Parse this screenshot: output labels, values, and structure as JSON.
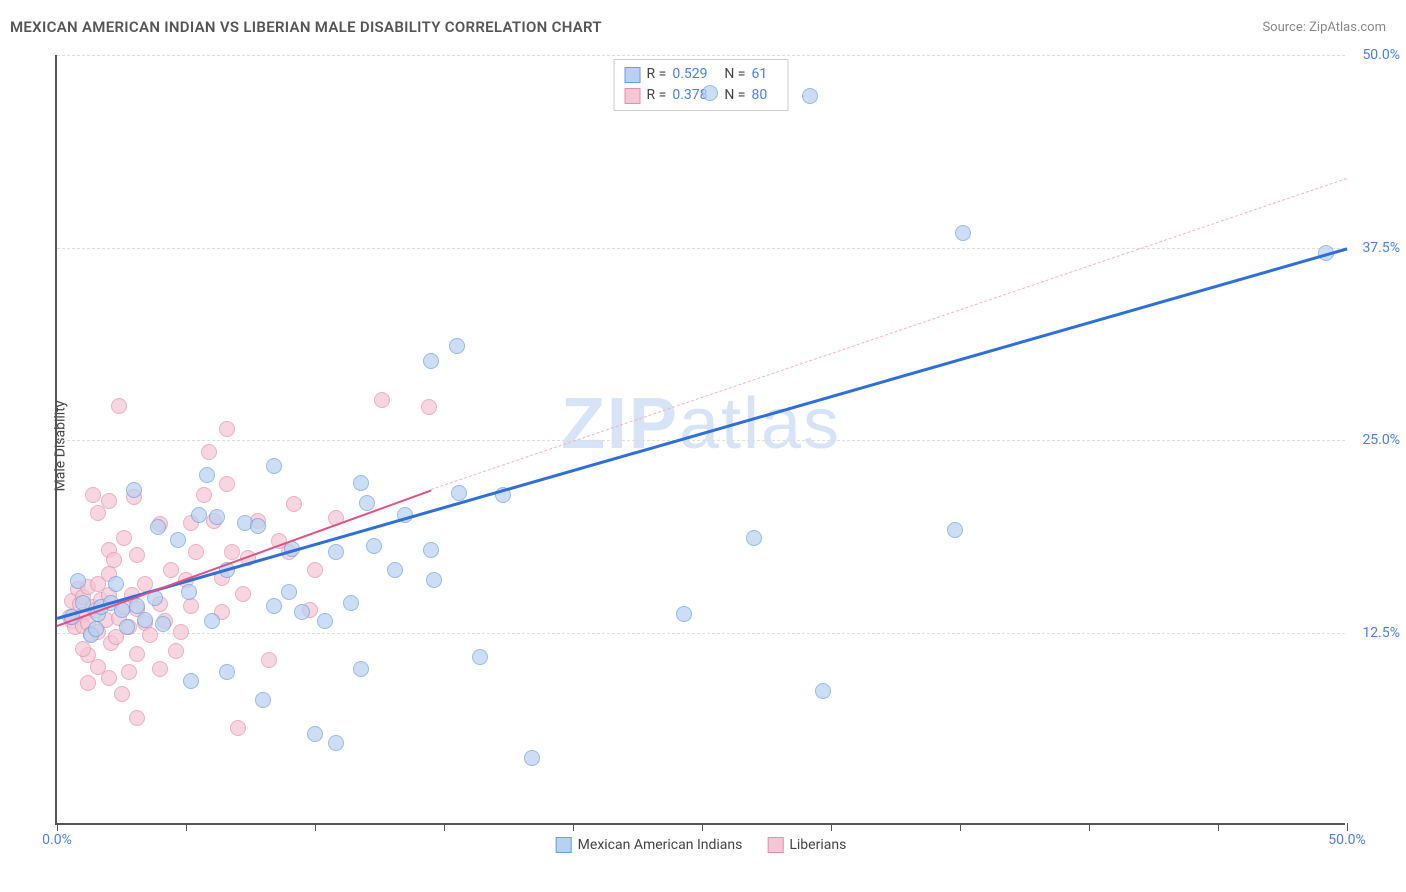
{
  "title": "MEXICAN AMERICAN INDIAN VS LIBERIAN MALE DISABILITY CORRELATION CHART",
  "source_label": "Source:",
  "source_name": "ZipAtlas.com",
  "yaxis_label": "Male Disability",
  "watermark": "ZIPatlas",
  "chart": {
    "type": "scatter",
    "xlim": [
      0,
      50
    ],
    "ylim": [
      0,
      50
    ],
    "ytick_step": 12.5,
    "xtick_step": 12.5,
    "ytick_labels": [
      "12.5%",
      "25.0%",
      "37.5%",
      "50.0%"
    ],
    "xtick_labels_shown": {
      "0": "0.0%",
      "50": "50.0%"
    },
    "grid_color": "#dddddd",
    "axis_color": "#555555",
    "background_color": "#ffffff",
    "label_color": "#4a80e8"
  },
  "series": [
    {
      "name": "Mexican American Indians",
      "fill": "#b9d1f0",
      "stroke": "#6a9de0",
      "trend_color": "#2e6fd8",
      "trend_style": "solid",
      "trend_width": 3,
      "trend_dashed_extension_color": "#f0c2d0",
      "R": "0.529",
      "N": "61",
      "trend": {
        "x1": 0,
        "y1": 13.5,
        "x2": 50,
        "y2": 37.5
      },
      "points": [
        [
          0.6,
          13.4
        ],
        [
          0.8,
          15.7
        ],
        [
          1.0,
          14.3
        ],
        [
          1.3,
          12.2
        ],
        [
          1.6,
          13.6
        ],
        [
          1.7,
          14.0
        ],
        [
          1.5,
          12.6
        ],
        [
          2.1,
          14.3
        ],
        [
          2.5,
          13.8
        ],
        [
          2.3,
          15.5
        ],
        [
          2.7,
          12.7
        ],
        [
          3.1,
          14.1
        ],
        [
          3.4,
          13.2
        ],
        [
          3.8,
          14.6
        ],
        [
          4.1,
          12.9
        ],
        [
          3.0,
          21.6
        ],
        [
          3.9,
          19.2
        ],
        [
          4.7,
          18.4
        ],
        [
          5.1,
          15.0
        ],
        [
          5.5,
          20.0
        ],
        [
          5.8,
          22.6
        ],
        [
          6.2,
          19.9
        ],
        [
          6.0,
          13.1
        ],
        [
          6.6,
          16.4
        ],
        [
          7.3,
          19.5
        ],
        [
          7.8,
          19.3
        ],
        [
          8.4,
          14.1
        ],
        [
          8.4,
          23.2
        ],
        [
          9.1,
          17.8
        ],
        [
          9.5,
          13.7
        ],
        [
          9.0,
          15.0
        ],
        [
          10.4,
          13.1
        ],
        [
          10.8,
          17.6
        ],
        [
          11.4,
          14.3
        ],
        [
          11.8,
          22.1
        ],
        [
          12.3,
          18.0
        ],
        [
          13.1,
          16.4
        ],
        [
          13.5,
          20.0
        ],
        [
          14.6,
          15.8
        ],
        [
          14.5,
          17.7
        ],
        [
          15.5,
          31.0
        ],
        [
          16.4,
          10.8
        ],
        [
          15.6,
          21.4
        ],
        [
          14.5,
          30.0
        ],
        [
          12.0,
          20.8
        ],
        [
          10.0,
          5.8
        ],
        [
          10.8,
          5.2
        ],
        [
          8.0,
          8.0
        ],
        [
          6.6,
          9.8
        ],
        [
          5.2,
          9.2
        ],
        [
          11.8,
          10.0
        ],
        [
          17.3,
          21.3
        ],
        [
          18.4,
          4.2
        ],
        [
          24.3,
          13.6
        ],
        [
          25.3,
          47.4
        ],
        [
          27.0,
          18.5
        ],
        [
          29.2,
          47.2
        ],
        [
          29.7,
          8.6
        ],
        [
          35.1,
          38.3
        ],
        [
          34.8,
          19.0
        ],
        [
          49.2,
          37.0
        ]
      ]
    },
    {
      "name": "Liberians",
      "fill": "#f5c6d6",
      "stroke": "#e38fa8",
      "trend_color": "#e15282",
      "trend_style": "solid",
      "trend_width": 2,
      "R": "0.378",
      "N": "80",
      "trend": {
        "x1": 0,
        "y1": 13.0,
        "x2": 14.5,
        "y2": 21.8
      },
      "dashed_trend": {
        "x1": 14.5,
        "y1": 21.8,
        "x2": 50,
        "y2": 42.0,
        "color": "#f0b2c5"
      },
      "points": [
        [
          0.6,
          13.1
        ],
        [
          0.7,
          12.7
        ],
        [
          0.6,
          14.4
        ],
        [
          0.5,
          13.4
        ],
        [
          0.8,
          15.2
        ],
        [
          0.9,
          14.2
        ],
        [
          1.0,
          13.5
        ],
        [
          1.0,
          14.7
        ],
        [
          1.0,
          12.8
        ],
        [
          1.2,
          13.0
        ],
        [
          1.2,
          15.3
        ],
        [
          1.4,
          14.0
        ],
        [
          1.3,
          12.3
        ],
        [
          1.5,
          13.8
        ],
        [
          1.6,
          12.4
        ],
        [
          1.6,
          15.5
        ],
        [
          1.7,
          14.5
        ],
        [
          1.9,
          13.2
        ],
        [
          2.0,
          14.8
        ],
        [
          2.0,
          16.2
        ],
        [
          2.0,
          17.7
        ],
        [
          2.4,
          13.3
        ],
        [
          2.1,
          11.7
        ],
        [
          1.6,
          20.1
        ],
        [
          1.4,
          21.3
        ],
        [
          2.6,
          14.0
        ],
        [
          2.3,
          12.1
        ],
        [
          2.8,
          12.7
        ],
        [
          2.9,
          14.8
        ],
        [
          3.1,
          13.9
        ],
        [
          2.2,
          17.1
        ],
        [
          2.6,
          18.5
        ],
        [
          3.1,
          17.4
        ],
        [
          3.4,
          15.5
        ],
        [
          3.4,
          13.0
        ],
        [
          3.6,
          12.2
        ],
        [
          3.1,
          11.0
        ],
        [
          2.8,
          9.8
        ],
        [
          2.5,
          8.4
        ],
        [
          3.1,
          6.8
        ],
        [
          2.0,
          9.4
        ],
        [
          1.6,
          10.1
        ],
        [
          1.2,
          10.9
        ],
        [
          1.0,
          11.3
        ],
        [
          1.2,
          9.1
        ],
        [
          4.0,
          14.2
        ],
        [
          4.2,
          13.1
        ],
        [
          4.4,
          16.4
        ],
        [
          2.0,
          20.9
        ],
        [
          2.4,
          27.1
        ],
        [
          3.0,
          21.2
        ],
        [
          4.0,
          19.4
        ],
        [
          4.8,
          12.4
        ],
        [
          4.0,
          10.0
        ],
        [
          4.6,
          11.2
        ],
        [
          5.2,
          14.1
        ],
        [
          5.0,
          15.8
        ],
        [
          5.4,
          17.6
        ],
        [
          5.2,
          19.5
        ],
        [
          5.7,
          21.3
        ],
        [
          5.9,
          24.1
        ],
        [
          6.1,
          19.6
        ],
        [
          6.4,
          13.7
        ],
        [
          6.4,
          15.9
        ],
        [
          6.8,
          17.6
        ],
        [
          6.6,
          22.0
        ],
        [
          6.6,
          25.6
        ],
        [
          7.2,
          14.9
        ],
        [
          7.4,
          17.2
        ],
        [
          7.8,
          19.6
        ],
        [
          8.2,
          10.6
        ],
        [
          7.0,
          6.2
        ],
        [
          8.6,
          18.3
        ],
        [
          9.0,
          17.6
        ],
        [
          9.2,
          20.7
        ],
        [
          9.8,
          13.8
        ],
        [
          10.0,
          16.4
        ],
        [
          10.8,
          19.8
        ],
        [
          12.6,
          27.5
        ],
        [
          14.4,
          27.0
        ]
      ]
    }
  ],
  "stats_box": {
    "rows": [
      {
        "swatch_fill": "#b9d1f0",
        "swatch_stroke": "#6a9de0",
        "R": "0.529",
        "N": "61"
      },
      {
        "swatch_fill": "#f5c6d6",
        "swatch_stroke": "#e38fa8",
        "R": "0.378",
        "N": "80"
      }
    ]
  },
  "legend": [
    {
      "swatch_fill": "#b9d1f0",
      "swatch_stroke": "#6a9de0",
      "label": "Mexican American Indians"
    },
    {
      "swatch_fill": "#f5c6d6",
      "swatch_stroke": "#e38fa8",
      "label": "Liberians"
    }
  ]
}
